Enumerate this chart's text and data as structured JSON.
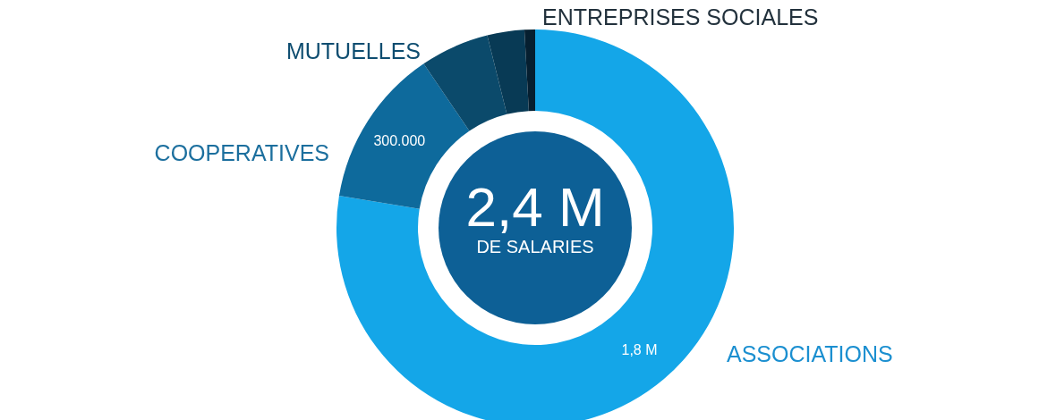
{
  "chart_data": {
    "type": "donut",
    "categories": [
      "ASSOCIATIONS",
      "COOPERATIVES",
      "MUTUELLES",
      null,
      "ENTREPRISES SOCIALES"
    ],
    "values": [
      1800000,
      300000,
      130000,
      70000,
      20000
    ],
    "colors": [
      "#14a6e8",
      "#0e6a9c",
      "#0b4a6b",
      "#083a55",
      "#061f30"
    ],
    "value_labels": [
      "1,8 M",
      "300.000",
      null,
      null,
      null
    ],
    "annotations": [
      "2,4 M",
      "DE SALARIES"
    ]
  }
}
